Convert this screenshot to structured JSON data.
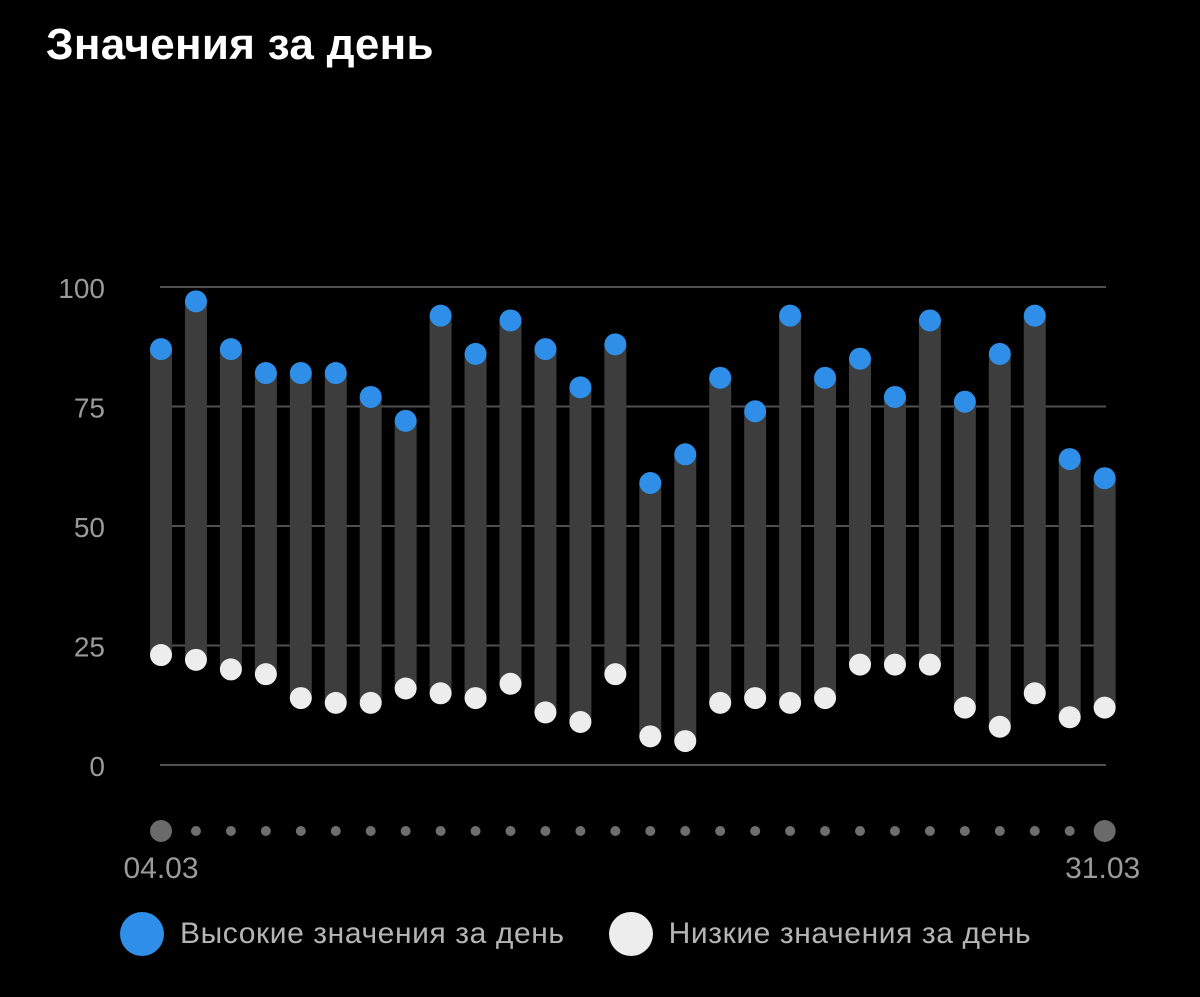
{
  "title": "Значения за день",
  "colors": {
    "background": "#000000",
    "high": "#2f8fe8",
    "low": "#ededed",
    "bar": "#3d3d3d",
    "grid": "#505050",
    "tick_text": "#9a9a9a",
    "page_dot": "#6a6a6a"
  },
  "chart_data": {
    "type": "range-bar",
    "title": "Значения за день",
    "ylim": [
      0,
      100
    ],
    "y_ticks": [
      "0",
      "25",
      "50",
      "75",
      "100"
    ],
    "x_start_label": "04.03",
    "x_end_label": "31.03",
    "series": [
      {
        "name": "Высокие значения за день",
        "values": [
          87,
          97,
          87,
          82,
          82,
          82,
          77,
          72,
          94,
          86,
          93,
          87,
          79,
          88,
          59,
          65,
          81,
          74,
          94,
          81,
          85,
          77,
          93,
          76,
          86,
          94,
          64,
          60
        ]
      },
      {
        "name": "Низкие значения за день",
        "values": [
          23,
          22,
          20,
          19,
          14,
          13,
          13,
          16,
          15,
          14,
          17,
          11,
          9,
          19,
          6,
          5,
          13,
          14,
          13,
          14,
          21,
          21,
          21,
          12,
          8,
          15,
          10,
          12
        ]
      }
    ]
  },
  "legend": {
    "high_label": "Высокие значения за день",
    "low_label": "Низкие значения за день"
  }
}
